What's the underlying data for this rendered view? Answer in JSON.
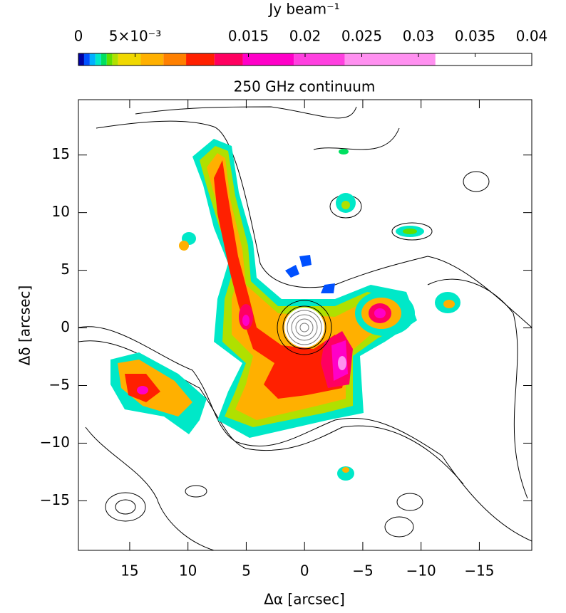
{
  "chart_data": {
    "type": "image",
    "title": "250 GHz continuum",
    "x_label": "Δα [arcsec]",
    "y_label": "Δδ [arcsec]",
    "xlim": [
      19.4,
      -19.5
    ],
    "ylim": [
      -19.3,
      19.8
    ],
    "xticks": [
      15,
      10,
      5,
      0,
      {
        "value": -5,
        "label": "−5"
      },
      {
        "value": -10,
        "label": "−10"
      },
      {
        "value": -15,
        "label": "−15"
      }
    ],
    "yticks": [
      15,
      10,
      5,
      0,
      {
        "value": -5,
        "label": "−5"
      },
      {
        "value": -10,
        "label": "−10"
      },
      {
        "value": -15,
        "label": "−15"
      }
    ],
    "colorbar": {
      "label": "Jy beam⁻¹",
      "lim": [
        0,
        0.04
      ],
      "ticks": [
        0,
        {
          "value": 0.005,
          "label": "5×10⁻³"
        },
        0.015,
        0.02,
        0.025,
        0.03,
        0.035,
        0.04
      ],
      "levels": [
        0,
        0.0005,
        0.001,
        0.0015,
        0.002,
        0.0025,
        0.003,
        0.0035,
        0.0055,
        0.0075,
        0.0095,
        0.012,
        0.0145,
        0.019,
        0.0235,
        0.0315,
        0.04
      ],
      "colors": [
        "#0000a0",
        "#0050ff",
        "#00b0ff",
        "#00e8c8",
        "#00e060",
        "#60e000",
        "#b0e000",
        "#f0d800",
        "#ffb000",
        "#ff8000",
        "#ff2000",
        "#ff0060",
        "#ff00c8",
        "#ff40e0",
        "#ff90f0",
        "#ffffff"
      ]
    }
  }
}
